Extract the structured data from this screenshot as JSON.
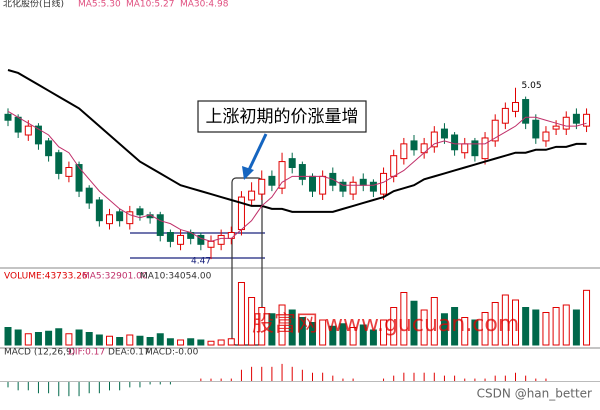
{
  "header": {
    "title": "北化股份(日线)",
    "ma5": "MA5:5.30",
    "ma10": "MA10:5.27",
    "ma30": "MA30:4.98"
  },
  "chart_data": {
    "type": "candlestick",
    "open": [
      4.96,
      4.95,
      4.89,
      4.92,
      4.87,
      4.83,
      4.75,
      4.79,
      4.71,
      4.67,
      4.59,
      4.63,
      4.59,
      4.64,
      4.62,
      4.62,
      4.56,
      4.52,
      4.56,
      4.55,
      4.51,
      4.52,
      4.54,
      4.57,
      4.67,
      4.69,
      4.75,
      4.71,
      4.81,
      4.79,
      4.75,
      4.69,
      4.76,
      4.73,
      4.69,
      4.74,
      4.73,
      4.69,
      4.75,
      4.81,
      4.87,
      4.83,
      4.85,
      4.91,
      4.89,
      4.83,
      4.87,
      4.81,
      4.87,
      4.93,
      4.97,
      5.01,
      4.94,
      4.87,
      4.91,
      4.91,
      4.96,
      4.92
    ],
    "high": [
      4.98,
      4.96,
      4.94,
      4.93,
      4.88,
      4.84,
      4.8,
      4.8,
      4.72,
      4.68,
      4.64,
      4.64,
      4.65,
      4.65,
      4.63,
      4.63,
      4.57,
      4.57,
      4.57,
      4.56,
      4.55,
      4.57,
      4.58,
      4.7,
      4.73,
      4.77,
      4.77,
      4.83,
      4.83,
      4.8,
      4.76,
      4.77,
      4.78,
      4.74,
      4.75,
      4.76,
      4.74,
      4.78,
      4.84,
      4.88,
      4.89,
      4.88,
      4.92,
      4.93,
      4.9,
      4.88,
      4.88,
      4.9,
      4.96,
      5.0,
      5.05,
      5.02,
      4.96,
      4.92,
      4.94,
      4.97,
      4.98,
      4.98
    ],
    "low": [
      4.92,
      4.88,
      4.87,
      4.84,
      4.8,
      4.74,
      4.73,
      4.68,
      4.64,
      4.58,
      4.57,
      4.58,
      4.57,
      4.6,
      4.59,
      4.53,
      4.51,
      4.5,
      4.52,
      4.5,
      4.47,
      4.5,
      4.52,
      4.55,
      4.65,
      4.67,
      4.7,
      4.69,
      4.76,
      4.72,
      4.68,
      4.67,
      4.7,
      4.68,
      4.67,
      4.7,
      4.68,
      4.67,
      4.73,
      4.79,
      4.82,
      4.81,
      4.83,
      4.86,
      4.82,
      4.81,
      4.8,
      4.79,
      4.85,
      4.91,
      4.95,
      4.91,
      4.86,
      4.85,
      4.89,
      4.89,
      4.91,
      4.9
    ],
    "close": [
      4.94,
      4.9,
      4.92,
      4.86,
      4.82,
      4.76,
      4.78,
      4.7,
      4.66,
      4.6,
      4.62,
      4.6,
      4.63,
      4.62,
      4.61,
      4.55,
      4.53,
      4.55,
      4.54,
      4.52,
      4.53,
      4.55,
      4.56,
      4.68,
      4.7,
      4.74,
      4.72,
      4.8,
      4.78,
      4.74,
      4.7,
      4.75,
      4.72,
      4.7,
      4.73,
      4.72,
      4.7,
      4.76,
      4.82,
      4.86,
      4.84,
      4.86,
      4.9,
      4.88,
      4.84,
      4.86,
      4.82,
      4.88,
      4.94,
      4.98,
      5.0,
      4.93,
      4.88,
      4.9,
      4.92,
      4.95,
      4.93,
      4.96
    ],
    "ylim": [
      4.45,
      5.33
    ],
    "up_color": "#e00000",
    "down_color": "#00684a",
    "lines": [
      {
        "color": "#000000",
        "values": [
          5.11,
          5.1,
          5.08,
          5.06,
          5.04,
          5.02,
          5.0,
          4.98,
          4.95,
          4.92,
          4.89,
          4.86,
          4.83,
          4.8,
          4.78,
          4.76,
          4.74,
          4.72,
          4.71,
          4.7,
          4.69,
          4.68,
          4.67,
          4.66,
          4.65,
          4.65,
          4.64,
          4.64,
          4.63,
          4.63,
          4.63,
          4.63,
          4.63,
          4.64,
          4.65,
          4.66,
          4.67,
          4.68,
          4.7,
          4.71,
          4.72,
          4.74,
          4.75,
          4.76,
          4.77,
          4.78,
          4.79,
          4.8,
          4.81,
          4.82,
          4.83,
          4.83,
          4.84,
          4.84,
          4.85,
          4.85,
          4.86,
          4.86
        ]
      },
      {
        "color": "#c0306a",
        "values": [
          4.97,
          4.95,
          4.93,
          4.91,
          4.89,
          4.85,
          4.83,
          4.78,
          4.74,
          4.7,
          4.67,
          4.64,
          4.62,
          4.61,
          4.62,
          4.6,
          4.59,
          4.57,
          4.56,
          4.54,
          4.53,
          4.54,
          4.54,
          4.57,
          4.6,
          4.65,
          4.68,
          4.73,
          4.75,
          4.75,
          4.75,
          4.75,
          4.74,
          4.72,
          4.72,
          4.72,
          4.72,
          4.73,
          4.75,
          4.77,
          4.8,
          4.83,
          4.86,
          4.87,
          4.86,
          4.86,
          4.86,
          4.86,
          4.88,
          4.9,
          4.92,
          4.95,
          4.95,
          4.94,
          4.93,
          4.92,
          4.92,
          4.93
        ]
      }
    ],
    "max_label": 5.05,
    "min_label": 4.47,
    "annotation": "上涨初期的价涨量增",
    "volume": {
      "label": "VOLUME:43733.26",
      "ma5": "MA5:32901.00",
      "ma10": "MA10:34054.00",
      "ylim": [
        0,
        60000
      ],
      "values": [
        14000,
        12000,
        9000,
        10000,
        11000,
        13000,
        9000,
        12000,
        10000,
        8000,
        7000,
        6000,
        8000,
        7000,
        6000,
        9000,
        5000,
        4000,
        5000,
        4000,
        3000,
        4000,
        5000,
        50000,
        38000,
        30000,
        25000,
        32000,
        28000,
        22000,
        18000,
        20000,
        15000,
        17000,
        14000,
        16000,
        12000,
        20000,
        30000,
        42000,
        35000,
        28000,
        38000,
        25000,
        30000,
        22000,
        20000,
        26000,
        34000,
        40000,
        36000,
        30000,
        28000,
        26000,
        30000,
        32000,
        28000,
        43733.26
      ]
    },
    "macd": {
      "label": "MACD (12,26,9)",
      "dif": "DIF:0.17",
      "dea": "DEA:0.17",
      "macd": "MACD:-0.00",
      "ylim": [
        -0.08,
        0.08
      ],
      "values": [
        -0.02,
        -0.03,
        -0.03,
        -0.04,
        -0.04,
        -0.05,
        -0.05,
        -0.05,
        -0.04,
        -0.04,
        -0.03,
        -0.03,
        -0.02,
        -0.02,
        -0.01,
        -0.01,
        -0.01,
        0.0,
        0.0,
        0.01,
        0.01,
        0.01,
        0.01,
        0.04,
        0.05,
        0.05,
        0.05,
        0.06,
        0.05,
        0.04,
        0.03,
        0.03,
        0.02,
        0.01,
        0.01,
        0.0,
        0.0,
        0.01,
        0.02,
        0.03,
        0.03,
        0.03,
        0.03,
        0.02,
        0.02,
        0.01,
        0.01,
        0.01,
        0.02,
        0.02,
        0.03,
        0.02,
        0.01,
        0.01,
        0.0,
        0.0,
        0.0,
        0.0
      ]
    }
  },
  "watermarks": {
    "site": "股富网 www.gucuan.com",
    "csdn": "CSDN @han_better"
  }
}
